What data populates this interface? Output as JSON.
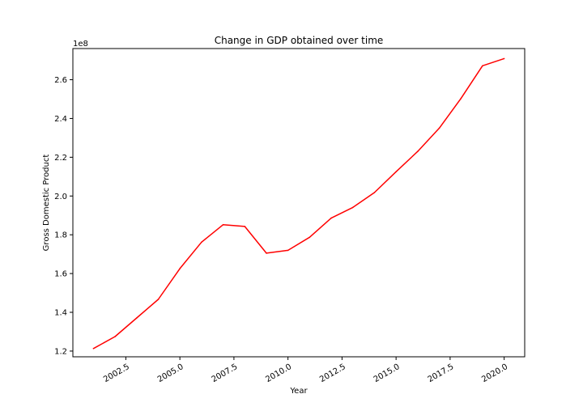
{
  "chart_data": {
    "type": "line",
    "title": "Change in GDP obtained over time",
    "xlabel": "Year",
    "ylabel": "Gross Domestic Product",
    "y_offset_label": "1e8",
    "line_color": "#ff0000",
    "xlim": [
      2000.05,
      2020.95
    ],
    "ylim": [
      1.1705,
      2.7608
    ],
    "x_ticks": [
      2002.5,
      2005.0,
      2007.5,
      2010.0,
      2012.5,
      2015.0,
      2017.5,
      2020.0
    ],
    "x_tick_labels": [
      "2002.5",
      "2005.0",
      "2007.5",
      "2010.0",
      "2012.5",
      "2015.0",
      "2017.5",
      "2020.0"
    ],
    "y_ticks": [
      1.2,
      1.4,
      1.6,
      1.8,
      2.0,
      2.2,
      2.4,
      2.6
    ],
    "y_tick_labels": [
      "1.2",
      "1.4",
      "1.6",
      "1.8",
      "2.0",
      "2.2",
      "2.4",
      "2.6"
    ],
    "x_tick_rotation_deg": -30,
    "grid": false,
    "series": [
      {
        "x": [
          2001,
          2002,
          2003,
          2004,
          2005,
          2006,
          2007,
          2008,
          2009,
          2010,
          2011,
          2012,
          2013,
          2014,
          2015,
          2016,
          2017,
          2018,
          2019,
          2020
        ],
        "values": [
          1.213,
          1.275,
          1.371,
          1.467,
          1.626,
          1.762,
          1.852,
          1.843,
          1.705,
          1.72,
          1.787,
          1.886,
          1.941,
          2.018,
          2.125,
          2.23,
          2.35,
          2.503,
          2.672,
          2.709
        ]
      }
    ]
  }
}
